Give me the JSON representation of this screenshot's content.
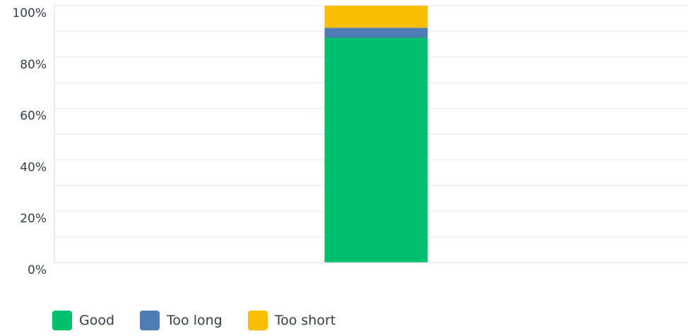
{
  "chart_data": {
    "type": "bar",
    "stacked": true,
    "categories": [
      ""
    ],
    "series": [
      {
        "name": "Good",
        "values": [
          87.5
        ],
        "color": "#00bf6f"
      },
      {
        "name": "Too long",
        "values": [
          3.9
        ],
        "color": "#507cb6"
      },
      {
        "name": "Too short",
        "values": [
          8.6
        ],
        "color": "#f9be00"
      }
    ],
    "ylim": [
      0,
      100
    ],
    "yticks": [
      "0%",
      "20%",
      "40%",
      "60%",
      "80%",
      "100%"
    ],
    "grid": true,
    "legend_placement": "bottom-left"
  }
}
